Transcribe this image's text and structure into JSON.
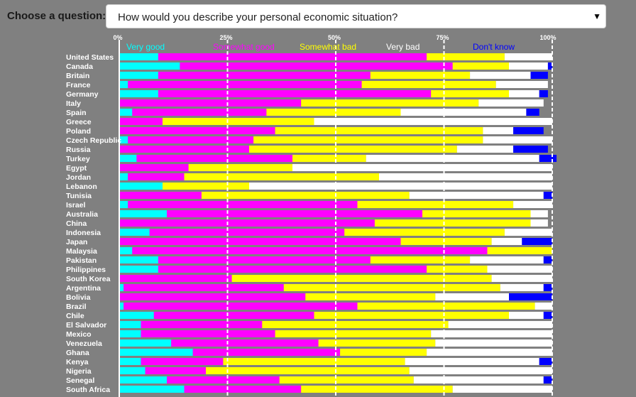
{
  "question_label": "Choose a question:",
  "selected_question": "How would you describe your personal economic situation?",
  "dropdown_icon": "triangle-down-icon",
  "colors": {
    "background": "#808080",
    "very_good": "#00ffff",
    "somewhat_good": "#ff00ff",
    "somewhat_bad": "#ffff00",
    "very_bad": "#ffffff",
    "dont_know": "#0000ff",
    "gridline": "#ffffff"
  },
  "chart_data": {
    "type": "bar",
    "orientation": "horizontal",
    "stacked": true,
    "xlim": [
      0,
      100
    ],
    "x_ticks": [
      "0%",
      "25%",
      "50%",
      "75%",
      "100%"
    ],
    "legend_position": "top",
    "grid": true,
    "series": [
      {
        "name": "Very good",
        "color": "#00ffff"
      },
      {
        "name": "Somewhat good",
        "color": "#ff00ff"
      },
      {
        "name": "Somewhat bad",
        "color": "#ffff00"
      },
      {
        "name": "Very bad",
        "color": "#ffffff"
      },
      {
        "name": "Don't know",
        "color": "#0000ff"
      }
    ],
    "categories": [
      {
        "name": "United States",
        "values": [
          9,
          62,
          18,
          11,
          0
        ]
      },
      {
        "name": "Canada",
        "values": [
          14,
          63,
          13,
          9,
          1
        ]
      },
      {
        "name": "Britain",
        "values": [
          9,
          49,
          23,
          14,
          4
        ]
      },
      {
        "name": "France",
        "values": [
          2,
          54,
          31,
          12,
          0
        ]
      },
      {
        "name": "Germany",
        "values": [
          9,
          63,
          18,
          7,
          2
        ]
      },
      {
        "name": "Italy",
        "values": [
          0,
          42,
          41,
          15,
          0
        ]
      },
      {
        "name": "Spain",
        "values": [
          3,
          31,
          31,
          29,
          3
        ]
      },
      {
        "name": "Greece",
        "values": [
          0,
          10,
          35,
          55,
          0
        ]
      },
      {
        "name": "Poland",
        "values": [
          0,
          36,
          48,
          7,
          7
        ]
      },
      {
        "name": "Czech Republic",
        "values": [
          2,
          29,
          53,
          16,
          0
        ]
      },
      {
        "name": "Russia",
        "values": [
          0,
          30,
          48,
          13,
          8
        ]
      },
      {
        "name": "Turkey",
        "values": [
          4,
          36,
          17,
          40,
          4
        ]
      },
      {
        "name": "Egypt",
        "values": [
          0,
          16,
          24,
          60,
          0
        ]
      },
      {
        "name": "Jordan",
        "values": [
          2,
          13,
          45,
          40,
          0
        ]
      },
      {
        "name": "Lebanon",
        "values": [
          10,
          0,
          20,
          70,
          0
        ]
      },
      {
        "name": "Tunisia",
        "values": [
          0,
          19,
          48,
          31,
          2
        ]
      },
      {
        "name": "Israel",
        "values": [
          2,
          53,
          36,
          9,
          0
        ]
      },
      {
        "name": "Australia",
        "values": [
          11,
          59,
          25,
          4,
          0
        ]
      },
      {
        "name": "China",
        "values": [
          0,
          59,
          36,
          4,
          0
        ]
      },
      {
        "name": "Indonesia",
        "values": [
          7,
          45,
          37,
          11,
          0
        ]
      },
      {
        "name": "Japan",
        "values": [
          0,
          65,
          21,
          7,
          7
        ]
      },
      {
        "name": "Malaysia",
        "values": [
          3,
          82,
          15,
          0,
          0
        ]
      },
      {
        "name": "Pakistan",
        "values": [
          9,
          49,
          23,
          17,
          2
        ]
      },
      {
        "name": "Philippines",
        "values": [
          9,
          62,
          14,
          15,
          0
        ]
      },
      {
        "name": "South Korea",
        "values": [
          0,
          26,
          60,
          14,
          0
        ]
      },
      {
        "name": "Argentina",
        "values": [
          1,
          37,
          50,
          10,
          2
        ]
      },
      {
        "name": "Bolivia",
        "values": [
          0,
          43,
          30,
          17,
          10
        ]
      },
      {
        "name": "Brazil",
        "values": [
          1,
          54,
          41,
          4,
          0
        ]
      },
      {
        "name": "Chile",
        "values": [
          8,
          37,
          45,
          8,
          2
        ]
      },
      {
        "name": "El Salvador",
        "values": [
          5,
          28,
          43,
          24,
          0
        ]
      },
      {
        "name": "Mexico",
        "values": [
          5,
          31,
          36,
          28,
          0
        ]
      },
      {
        "name": "Venezuela",
        "values": [
          12,
          34,
          27,
          27,
          0
        ]
      },
      {
        "name": "Ghana",
        "values": [
          17,
          34,
          20,
          29,
          0
        ]
      },
      {
        "name": "Kenya",
        "values": [
          5,
          19,
          42,
          31,
          3
        ]
      },
      {
        "name": "Nigeria",
        "values": [
          6,
          14,
          47,
          33,
          0
        ]
      },
      {
        "name": "Senegal",
        "values": [
          11,
          26,
          31,
          30,
          2
        ]
      },
      {
        "name": "South Africa",
        "values": [
          15,
          27,
          35,
          23,
          0
        ]
      }
    ]
  }
}
